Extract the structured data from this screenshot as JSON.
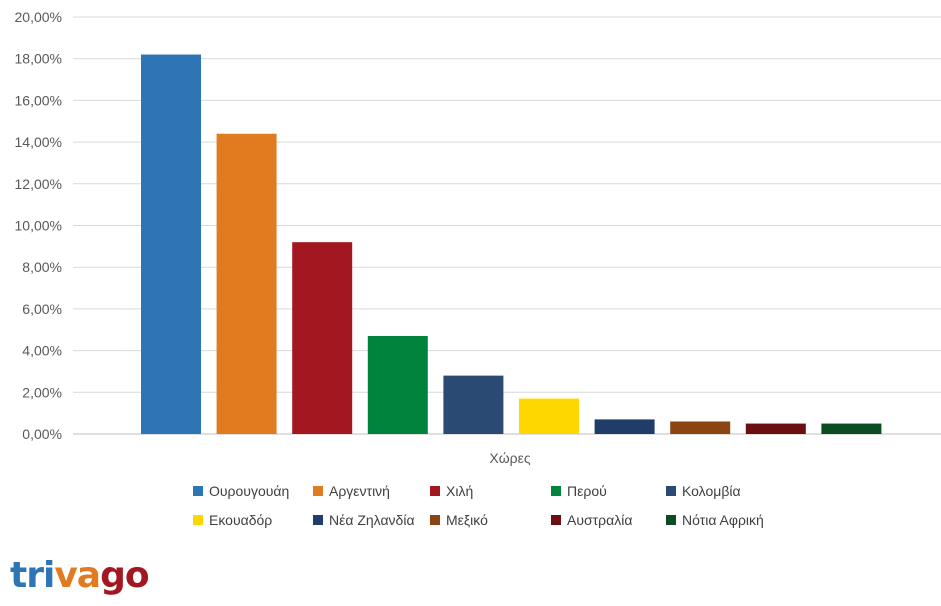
{
  "chart_data": {
    "type": "bar",
    "categories": [
      "Ουρουγουάη",
      "Αργεντινή",
      "Χιλή",
      "Περού",
      "Κολομβία",
      "Εκουαδόρ",
      "Νέα Ζηλανδία",
      "Μεξικό",
      "Αυστραλία",
      "Νότια Αφρική"
    ],
    "values": [
      18.2,
      14.4,
      9.2,
      4.7,
      2.8,
      1.7,
      0.7,
      0.6,
      0.5,
      0.5
    ],
    "colors": [
      "#2e75b6",
      "#e07b20",
      "#a31720",
      "#00843d",
      "#2a4a73",
      "#ffd700",
      "#1f3d68",
      "#8b4513",
      "#6b0f12",
      "#0a4d22"
    ],
    "yticks": [
      "0,00%",
      "2,00%",
      "4,00%",
      "6,00%",
      "8,00%",
      "10,00%",
      "12,00%",
      "14,00%",
      "16,00%",
      "18,00%",
      "20,00%"
    ],
    "ylim": [
      0,
      20
    ],
    "xlabel": "Χώρες",
    "ylabel": "",
    "grid": true,
    "legend_position": "bottom"
  },
  "logo": {
    "text": "trivago",
    "letters": [
      "t",
      "r",
      "i",
      "v",
      "a",
      "g",
      "o"
    ],
    "letter_colors": [
      "#2e75b6",
      "#2e75b6",
      "#2e75b6",
      "#e07b20",
      "#e07b20",
      "#a31720",
      "#a31720"
    ]
  }
}
